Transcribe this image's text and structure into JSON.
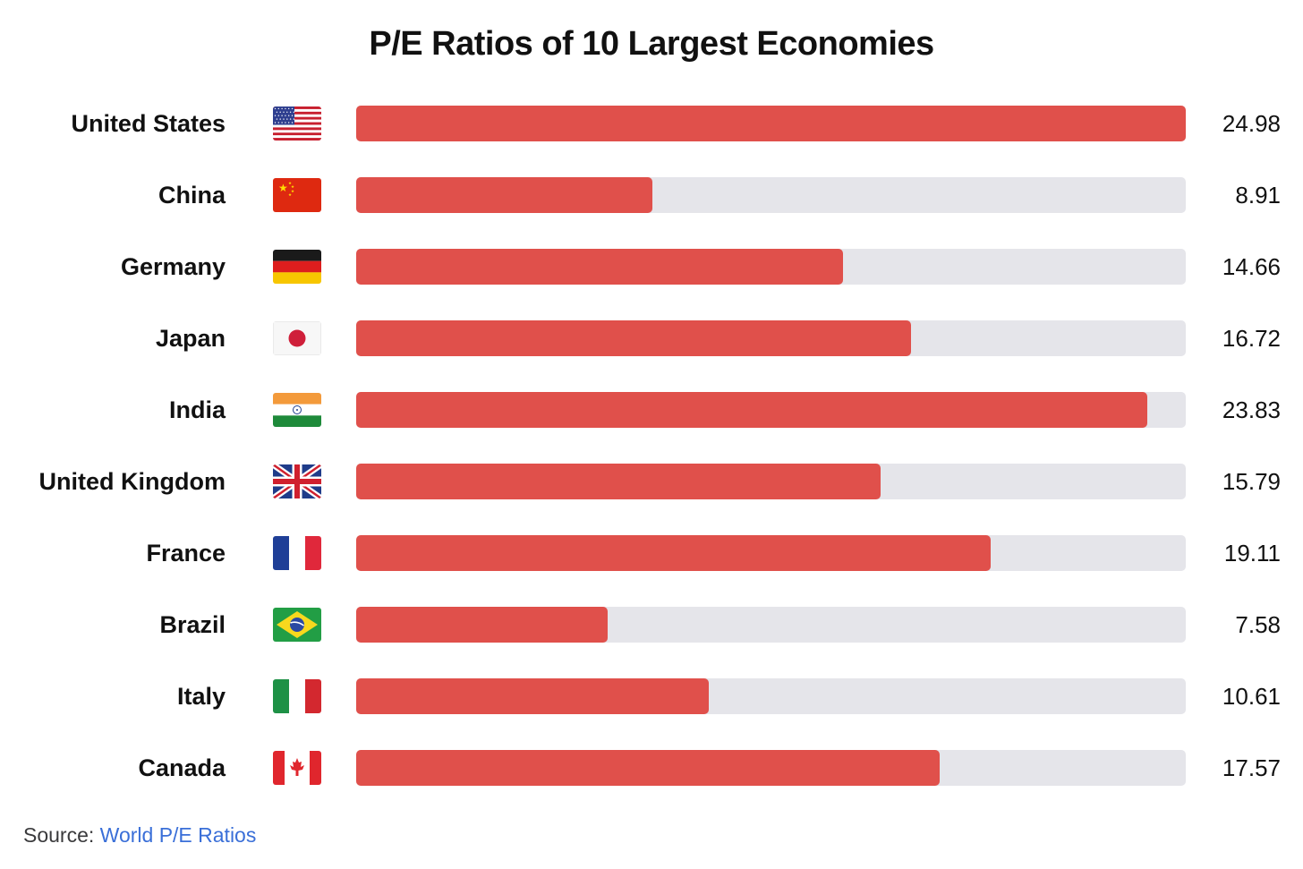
{
  "chart_data": {
    "type": "bar",
    "orientation": "horizontal",
    "title": "P/E Ratios of 10 Largest Economies",
    "categories": [
      "United States",
      "China",
      "Germany",
      "Japan",
      "India",
      "United Kingdom",
      "France",
      "Brazil",
      "Italy",
      "Canada"
    ],
    "values": [
      24.98,
      8.91,
      14.66,
      16.72,
      23.83,
      15.79,
      19.11,
      7.58,
      10.61,
      17.57
    ],
    "value_labels": [
      "24.98",
      "8.91",
      "14.66",
      "16.72",
      "23.83",
      "15.79",
      "19.11",
      "7.58",
      "10.61",
      "17.57"
    ],
    "flags": [
      "us-flag-icon",
      "china-flag-icon",
      "germany-flag-icon",
      "japan-flag-icon",
      "india-flag-icon",
      "uk-flag-icon",
      "france-flag-icon",
      "brazil-flag-icon",
      "italy-flag-icon",
      "canada-flag-icon"
    ],
    "xlim": [
      0,
      24.98
    ],
    "grid": false,
    "legend": "none",
    "bar_color": "#e0504b",
    "track_color": "#e5e5ea"
  },
  "source": {
    "label": "Source:",
    "link_text": "World P/E Ratios",
    "link_color": "#3a6fd8"
  }
}
